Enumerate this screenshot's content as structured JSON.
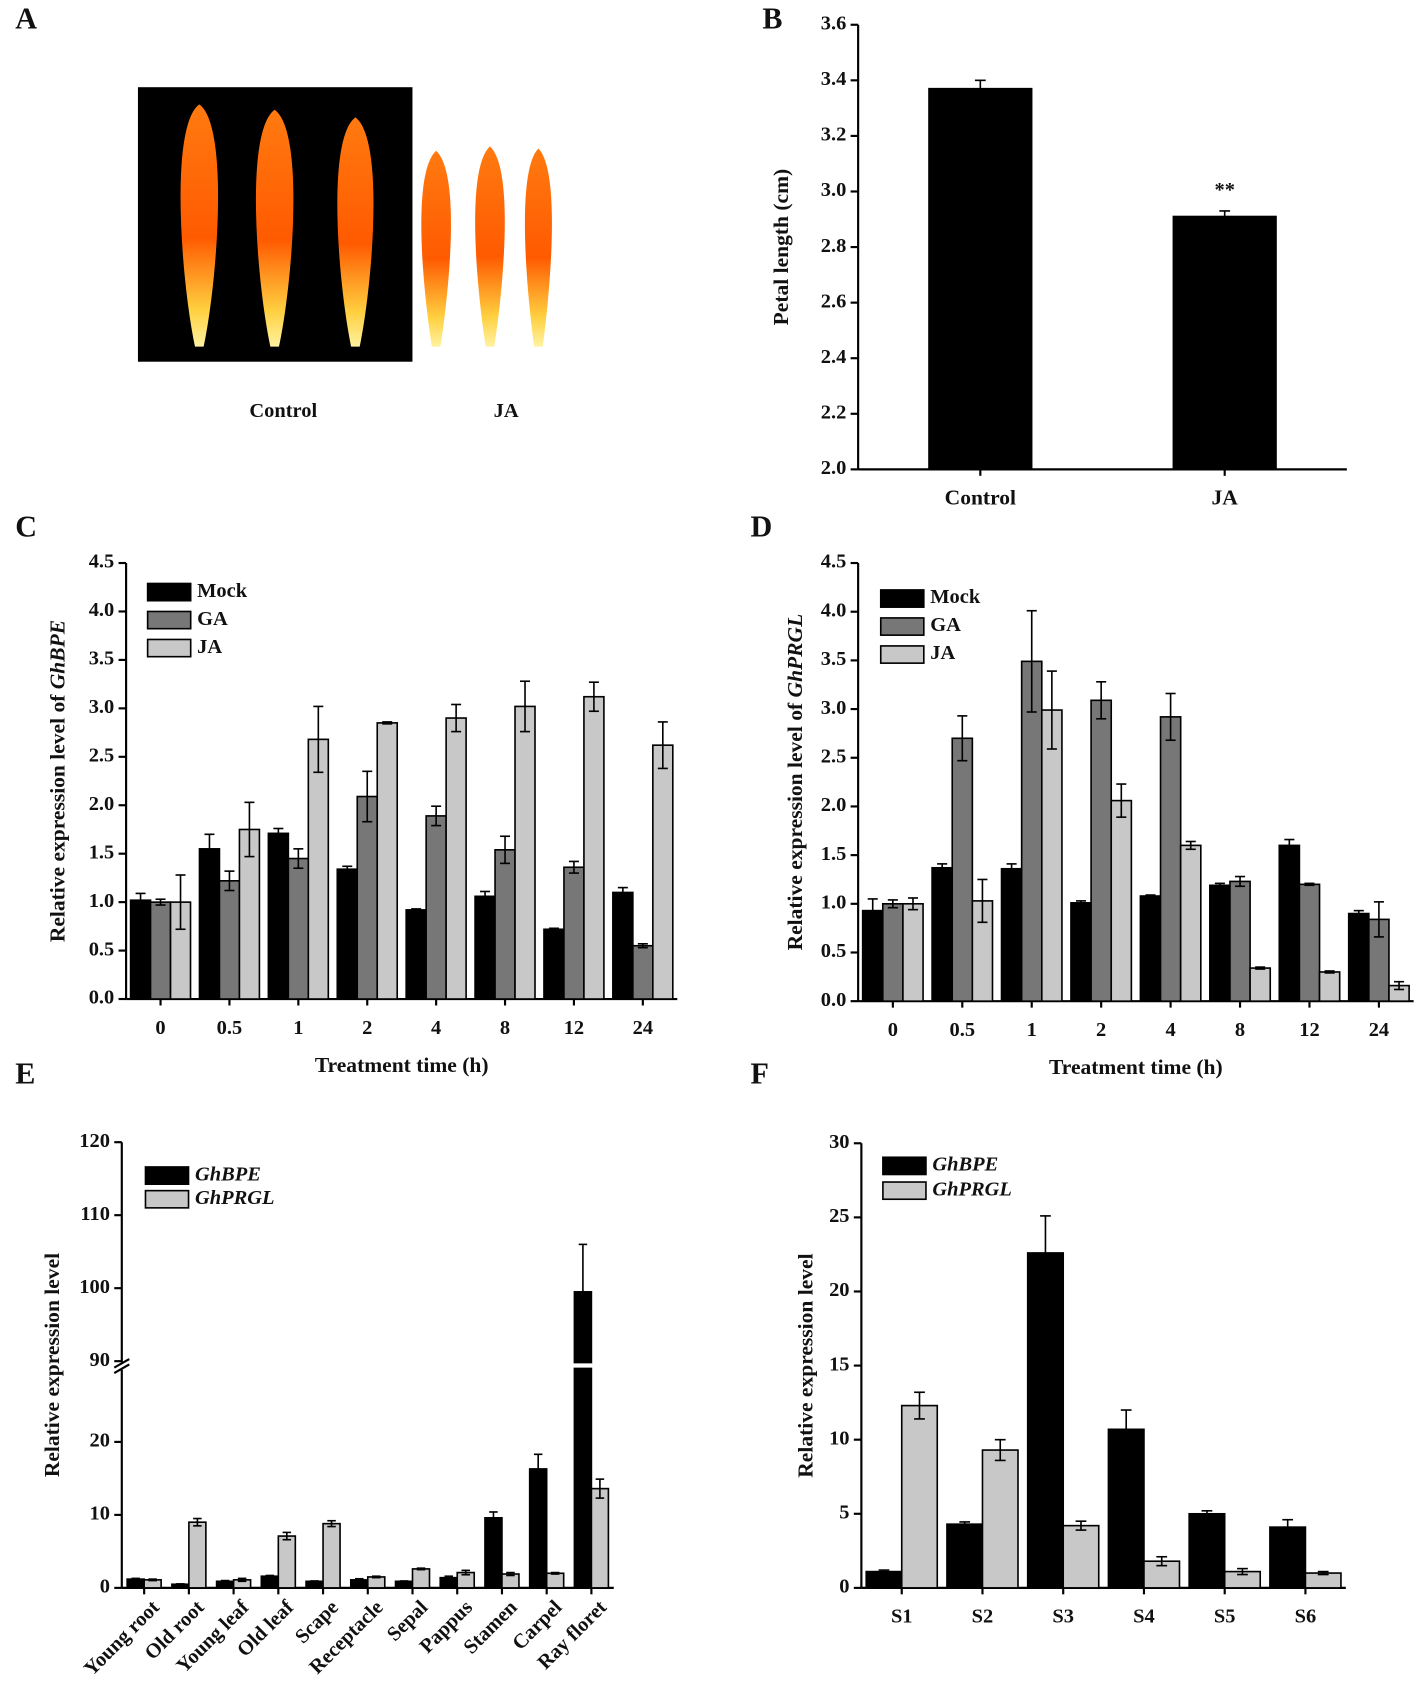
{
  "chart_data": [
    {
      "panel": "A",
      "type": "photo",
      "labels": [
        "Control",
        "JA"
      ]
    },
    {
      "panel": "B",
      "type": "bar",
      "categories": [
        "Control",
        "JA"
      ],
      "values": [
        3.37,
        2.91
      ],
      "errors": [
        0.03,
        0.02
      ],
      "color": "#000000",
      "annotation": "**",
      "ylabel": "Petal length (cm)",
      "ylim": [
        2.0,
        3.6
      ],
      "yticks": [
        {
          "value": 2.0,
          "label": "2.0"
        },
        2.2,
        2.4,
        2.6,
        2.8,
        {
          "value": 3.0,
          "label": "3.0"
        },
        3.2,
        3.4,
        3.6
      ]
    },
    {
      "panel": "C",
      "type": "grouped_bar",
      "categories": [
        "0",
        "0.5",
        "1",
        "2",
        "4",
        "8",
        "12",
        "24"
      ],
      "series": [
        {
          "name": "Mock",
          "color": "#000000",
          "values": [
            1.02,
            1.55,
            1.71,
            1.34,
            0.92,
            1.06,
            0.72,
            1.1
          ],
          "errors": [
            0.07,
            0.15,
            0.05,
            0.03,
            0.01,
            0.05,
            0.01,
            0.05
          ]
        },
        {
          "name": "GA",
          "color": "#777777",
          "values": [
            1.0,
            1.22,
            1.45,
            2.09,
            1.89,
            1.54,
            1.36,
            0.55
          ],
          "errors": [
            0.03,
            0.1,
            0.1,
            0.26,
            0.1,
            0.14,
            0.06,
            0.02
          ]
        },
        {
          "name": "JA",
          "color": "#c8c8c8",
          "values": [
            1.0,
            1.75,
            2.68,
            2.85,
            2.9,
            3.02,
            3.12,
            2.62
          ],
          "errors": [
            0.28,
            0.28,
            0.34,
            0.01,
            0.14,
            0.26,
            0.15,
            0.24
          ]
        }
      ],
      "xlabel": "Treatment time (h)",
      "ylabel": "Relative expression level of",
      "ylabel_gene": "GhBPE",
      "ylim": [
        0,
        4.5
      ],
      "yticks": [
        {
          "value": 0,
          "label": "0.0"
        },
        0.5,
        {
          "value": 1,
          "label": "1.0"
        },
        1.5,
        {
          "value": 2,
          "label": "2.0"
        },
        2.5,
        {
          "value": 3,
          "label": "3.0"
        },
        3.5,
        {
          "value": 4,
          "label": "4.0"
        },
        4.5
      ],
      "legend": "upper left"
    },
    {
      "panel": "D",
      "type": "grouped_bar",
      "categories": [
        "0",
        "0.5",
        "1",
        "2",
        "4",
        "8",
        "12",
        "24"
      ],
      "series": [
        {
          "name": "Mock",
          "color": "#000000",
          "values": [
            0.93,
            1.37,
            1.36,
            1.01,
            1.08,
            1.19,
            1.6,
            0.9
          ],
          "errors": [
            0.12,
            0.04,
            0.05,
            0.02,
            0.01,
            0.02,
            0.06,
            0.03
          ]
        },
        {
          "name": "GA",
          "color": "#777777",
          "values": [
            1.0,
            2.7,
            3.49,
            3.09,
            2.92,
            1.23,
            1.2,
            0.84
          ],
          "errors": [
            0.04,
            0.23,
            0.52,
            0.19,
            0.24,
            0.05,
            0.01,
            0.18
          ]
        },
        {
          "name": "JA",
          "color": "#c8c8c8",
          "values": [
            1.0,
            1.03,
            2.99,
            2.06,
            1.6,
            0.34,
            0.3,
            0.16
          ],
          "errors": [
            0.06,
            0.22,
            0.4,
            0.17,
            0.04,
            0.01,
            0.01,
            0.04
          ]
        }
      ],
      "xlabel": "Treatment time (h)",
      "ylabel": "Relative expression level of",
      "ylabel_gene": "GhPRGL",
      "ylim": [
        0,
        4.5
      ],
      "yticks": [
        {
          "value": 0,
          "label": "0.0"
        },
        0.5,
        {
          "value": 1,
          "label": "1.0"
        },
        1.5,
        {
          "value": 2,
          "label": "2.0"
        },
        2.5,
        {
          "value": 3,
          "label": "3.0"
        },
        3.5,
        {
          "value": 4,
          "label": "4.0"
        },
        4.5
      ],
      "legend": "upper left"
    },
    {
      "panel": "E",
      "type": "grouped_bar",
      "categories": [
        "Young root",
        "Old root",
        "Young leaf",
        "Old leaf",
        "Scape",
        "Receptacle",
        "Sepal",
        "Pappus",
        "Stamen",
        "Carpel",
        "Ray floret"
      ],
      "series": [
        {
          "name": "GhBPE",
          "color": "#000000",
          "values": [
            1.2,
            0.5,
            0.9,
            1.6,
            0.9,
            1.1,
            0.9,
            1.4,
            9.6,
            16.3,
            99.5
          ],
          "errors": [
            0.1,
            0.05,
            0.1,
            0.1,
            0.05,
            0.15,
            0.05,
            0.2,
            0.8,
            2.0,
            6.5
          ]
        },
        {
          "name": "GhPRGL",
          "color": "#c8c8c8",
          "values": [
            1.1,
            9.0,
            1.1,
            7.1,
            8.8,
            1.5,
            2.6,
            2.1,
            1.9,
            2.0,
            13.6
          ],
          "errors": [
            0.1,
            0.5,
            0.2,
            0.5,
            0.4,
            0.1,
            0.1,
            0.3,
            0.2,
            0.1,
            1.3
          ]
        }
      ],
      "ylabel": "Relative expression level",
      "ylim": [
        0,
        120
      ],
      "ybreak": [
        20,
        90
      ],
      "yticks": [
        0,
        10,
        20,
        90,
        100,
        110,
        120
      ],
      "legend": "upper left",
      "legend_style": "italic",
      "xtick_rotation": -45
    },
    {
      "panel": "F",
      "type": "grouped_bar",
      "categories": [
        "S1",
        "S2",
        "S3",
        "S4",
        "S5",
        "S6"
      ],
      "series": [
        {
          "name": "GhBPE",
          "color": "#000000",
          "values": [
            1.1,
            4.3,
            22.6,
            10.7,
            5.0,
            4.1
          ],
          "errors": [
            0.1,
            0.15,
            2.5,
            1.3,
            0.2,
            0.5
          ]
        },
        {
          "name": "GhPRGL",
          "color": "#c8c8c8",
          "values": [
            12.3,
            9.3,
            4.2,
            1.8,
            1.1,
            1.0
          ],
          "errors": [
            0.9,
            0.7,
            0.3,
            0.3,
            0.2,
            0.1
          ]
        }
      ],
      "ylabel": "Relative expression level",
      "ylim": [
        0,
        30
      ],
      "yticks": [
        0,
        5,
        10,
        15,
        20,
        25,
        30
      ],
      "legend": "upper left",
      "legend_style": "italic"
    }
  ]
}
